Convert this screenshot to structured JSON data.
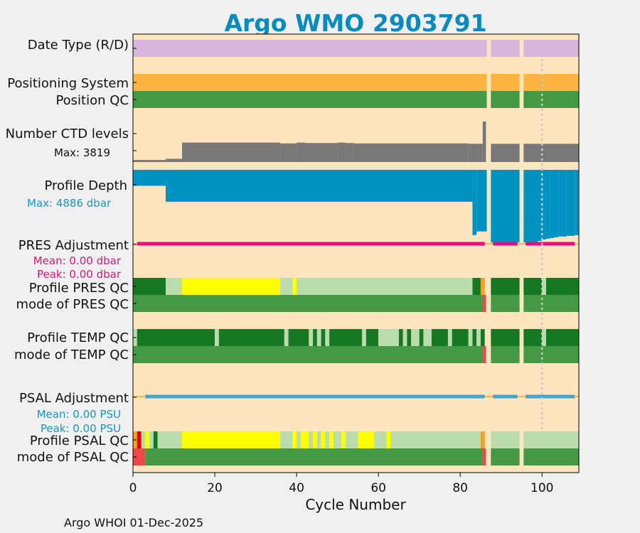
{
  "chart_data": {
    "type": "timeline",
    "title": "Argo WMO 2903791",
    "xlabel": "Cycle Number",
    "xlim": [
      0,
      109
    ],
    "xticks": [
      0,
      20,
      40,
      60,
      80,
      100
    ],
    "footer": "Argo WHOI 01-Dec-2025",
    "gaps": [
      [
        86.5,
        87.5
      ],
      [
        94.5,
        95.5
      ]
    ],
    "reference_line_cycle": 100,
    "colors": {
      "background": "#fce5bf",
      "data_mode": "#d8b5da",
      "positioning": "#fbb441",
      "qc_good": "#459945",
      "qc_dark": "#177823",
      "qc_light": "#badbab",
      "qc_yellow": "#ffff00",
      "qc_bad": "#f04848",
      "qc_red": "#e60000",
      "qc_orange": "#f2a12a",
      "ctd": "#787878",
      "depth": "#0093c2",
      "pres_adj": "#ea0a82",
      "psal_adj": "#39a6d6",
      "title": "#0a8bbd"
    },
    "rows": {
      "date_type": {
        "label": "Date Type (R/D)"
      },
      "positioning_system": {
        "label": "Positioning System"
      },
      "position_qc": {
        "label": "Position QC"
      },
      "ctd_levels": {
        "label": "Number CTD levels",
        "max_label": "Max: 3819",
        "max": 3819,
        "segments": [
          [
            0,
            8,
            0.05
          ],
          [
            8,
            12,
            0.08
          ],
          [
            12,
            36,
            0.48
          ],
          [
            36,
            40,
            0.46
          ],
          [
            40,
            42,
            0.48
          ],
          [
            42,
            50,
            0.47
          ],
          [
            50,
            52,
            0.48
          ],
          [
            52,
            54,
            0.47
          ],
          [
            54,
            82,
            0.46
          ],
          [
            82,
            85.5,
            0.45
          ],
          [
            85.5,
            86.3,
            1.0
          ],
          [
            87.5,
            94.5,
            0.45
          ],
          [
            95.5,
            109,
            0.45
          ]
        ]
      },
      "profile_depth": {
        "label": "Profile Depth",
        "max_label": "Max: 4886 dbar",
        "segments": [
          [
            0,
            8,
            0.22
          ],
          [
            8,
            83,
            0.44
          ],
          [
            83,
            84,
            0.9
          ],
          [
            84,
            86.5,
            0.85
          ],
          [
            87.5,
            94.5,
            1.0
          ],
          [
            95.5,
            99,
            1.0
          ],
          [
            99,
            100,
            0.98
          ],
          [
            100,
            101,
            0.96
          ],
          [
            101,
            102,
            0.95
          ],
          [
            102,
            103,
            0.94
          ],
          [
            103,
            104,
            0.93
          ],
          [
            104,
            106,
            0.92
          ],
          [
            106,
            108,
            0.91
          ],
          [
            108,
            109,
            0.9
          ]
        ]
      },
      "pres_adjustment": {
        "label": "PRES Adjustment",
        "mean_label": "Mean: 0.00 dbar",
        "peak_label": "Peak: 0.00 dbar",
        "segments": [
          [
            1,
            86
          ],
          [
            88,
            94
          ],
          [
            96,
            108
          ]
        ]
      },
      "profile_pres_qc": {
        "label": "Profile PRES QC",
        "segments": [
          [
            0,
            8,
            "dark"
          ],
          [
            8,
            12,
            "light"
          ],
          [
            12,
            36,
            "yellow"
          ],
          [
            36,
            39,
            "light"
          ],
          [
            39,
            40,
            "yellow"
          ],
          [
            40,
            83,
            "light"
          ],
          [
            83,
            85,
            "dark"
          ],
          [
            85,
            86,
            "orange"
          ],
          [
            87.5,
            94.5,
            "dark"
          ],
          [
            95.5,
            100,
            "dark"
          ],
          [
            100,
            101,
            "light"
          ],
          [
            101,
            109,
            "dark"
          ]
        ]
      },
      "mode_pres_qc": {
        "label": "mode of PRES QC",
        "segments": [
          [
            0,
            85.5,
            "good"
          ],
          [
            85.5,
            86.3,
            "bad"
          ],
          [
            87.5,
            94.5,
            "good"
          ],
          [
            95.5,
            109,
            "good"
          ]
        ]
      },
      "profile_temp_qc": {
        "label": "Profile TEMP QC",
        "segments": [
          [
            0,
            1,
            "light"
          ],
          [
            1,
            20,
            "dark"
          ],
          [
            20,
            21,
            "light"
          ],
          [
            21,
            37,
            "dark"
          ],
          [
            37,
            38,
            "light"
          ],
          [
            38,
            43,
            "dark"
          ],
          [
            43,
            44,
            "light"
          ],
          [
            44,
            45,
            "dark"
          ],
          [
            45,
            46,
            "light"
          ],
          [
            46,
            47,
            "dark"
          ],
          [
            47,
            48,
            "light"
          ],
          [
            48,
            56,
            "dark"
          ],
          [
            56,
            57,
            "light"
          ],
          [
            57,
            60,
            "dark"
          ],
          [
            60,
            65,
            "light"
          ],
          [
            65,
            66,
            "dark"
          ],
          [
            66,
            67,
            "light"
          ],
          [
            67,
            68,
            "dark"
          ],
          [
            68,
            70,
            "light"
          ],
          [
            70,
            71,
            "dark"
          ],
          [
            71,
            73,
            "light"
          ],
          [
            73,
            77,
            "dark"
          ],
          [
            77,
            78,
            "light"
          ],
          [
            78,
            82,
            "dark"
          ],
          [
            82,
            83,
            "light"
          ],
          [
            83,
            84,
            "dark"
          ],
          [
            84,
            85,
            "light"
          ],
          [
            85,
            86,
            "dark"
          ],
          [
            87.5,
            94.5,
            "dark"
          ],
          [
            95.5,
            100,
            "dark"
          ],
          [
            100,
            101,
            "light"
          ],
          [
            101,
            109,
            "dark"
          ]
        ]
      },
      "mode_temp_qc": {
        "label": "mode of TEMP QC",
        "segments": [
          [
            0,
            85.5,
            "good"
          ],
          [
            85.5,
            86.3,
            "bad"
          ],
          [
            87.5,
            94.5,
            "good"
          ],
          [
            95.5,
            109,
            "good"
          ]
        ]
      },
      "psal_adjustment": {
        "label": "PSAL Adjustment",
        "mean_label": "Mean: 0.00 PSU",
        "peak_label": "Peak: 0.00 PSU",
        "segments": [
          [
            3,
            86
          ],
          [
            88,
            94
          ],
          [
            96,
            108
          ]
        ]
      },
      "profile_psal_qc": {
        "label": "Profile PSAL QC",
        "segments": [
          [
            0,
            1,
            "orange"
          ],
          [
            1,
            2,
            "red"
          ],
          [
            2,
            3,
            "light"
          ],
          [
            3,
            4,
            "yellow"
          ],
          [
            4,
            5,
            "light"
          ],
          [
            5,
            6,
            "dark"
          ],
          [
            6,
            7,
            "light"
          ],
          [
            7,
            12,
            "light"
          ],
          [
            12,
            36,
            "yellow"
          ],
          [
            36,
            39,
            "light"
          ],
          [
            39,
            40,
            "yellow"
          ],
          [
            40,
            41,
            "light"
          ],
          [
            41,
            43,
            "yellow"
          ],
          [
            43,
            44,
            "light"
          ],
          [
            44,
            45,
            "yellow"
          ],
          [
            45,
            46,
            "light"
          ],
          [
            46,
            47,
            "yellow"
          ],
          [
            47,
            48,
            "light"
          ],
          [
            48,
            49,
            "yellow"
          ],
          [
            49,
            51,
            "light"
          ],
          [
            51,
            52,
            "yellow"
          ],
          [
            52,
            55,
            "light"
          ],
          [
            55,
            59,
            "yellow"
          ],
          [
            59,
            62,
            "light"
          ],
          [
            62,
            63,
            "yellow"
          ],
          [
            63,
            85,
            "light"
          ],
          [
            85,
            86,
            "orange"
          ],
          [
            87.5,
            94.5,
            "light"
          ],
          [
            95.5,
            109,
            "light"
          ]
        ]
      },
      "mode_psal_qc": {
        "label": "mode of PSAL QC",
        "segments": [
          [
            0,
            3,
            "bad"
          ],
          [
            3,
            85.5,
            "good"
          ],
          [
            85.5,
            86.3,
            "bad"
          ],
          [
            87.5,
            94.5,
            "good"
          ],
          [
            95.5,
            109,
            "good"
          ]
        ]
      }
    }
  }
}
